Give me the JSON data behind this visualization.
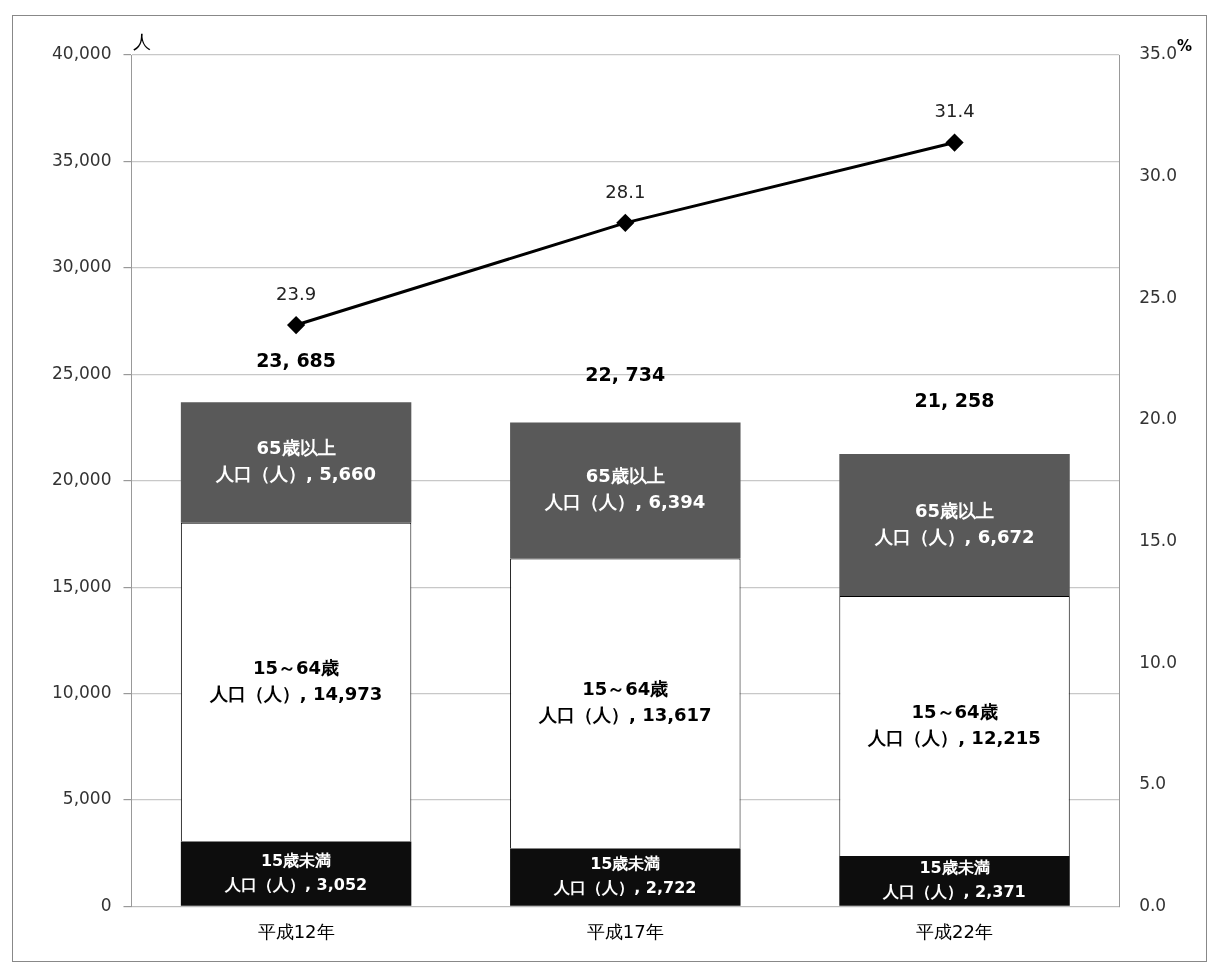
{
  "chart_data": {
    "type": "bar",
    "stacked": true,
    "categories": [
      "平成12年",
      "平成17年",
      "平成22年"
    ],
    "series": [
      {
        "name": "15歳未満人口（人）,",
        "color": "#0d0d0d",
        "values": [
          3052,
          2722,
          2371
        ],
        "value_labels": [
          "3,052",
          "2,722",
          "2,371"
        ]
      },
      {
        "name": "15～64歳人口（人）,",
        "color": "#ffffff",
        "values": [
          14973,
          13617,
          12215
        ],
        "value_labels": [
          "14,973",
          "13,617",
          "12,215"
        ]
      },
      {
        "name": "65歳以上人口（人）,",
        "color": "#595959",
        "values": [
          5660,
          6394,
          6672
        ],
        "value_labels": [
          "5,660",
          "6,394",
          "6,672"
        ]
      },
      {
        "type": "line",
        "axis": "y2",
        "color": "#000000",
        "marker": "diamond",
        "values": [
          23.9,
          28.1,
          31.4
        ],
        "value_labels": [
          "23.9",
          "28.1",
          "31.4"
        ]
      }
    ],
    "totals": [
      "23, 685",
      "22, 734",
      "21, 258"
    ],
    "ylabel": "人",
    "y2label": "%",
    "ylim": [
      0,
      40000
    ],
    "yticks": [
      0,
      {
        "value": 5000,
        "label": "5,000"
      },
      {
        "value": 10000,
        "label": "10,000"
      },
      {
        "value": 15000,
        "label": "15,000"
      },
      {
        "value": 20000,
        "label": "20,000"
      },
      {
        "value": 25000,
        "label": "25,000"
      },
      {
        "value": 30000,
        "label": "30,000"
      },
      {
        "value": 35000,
        "label": "35,000"
      },
      {
        "value": 40000,
        "label": "40,000"
      }
    ],
    "y2lim": [
      0,
      35
    ],
    "y2ticks": [
      {
        "value": 0,
        "label": "0.0"
      },
      {
        "value": 5,
        "label": "5.0"
      },
      {
        "value": 10,
        "label": "10.0"
      },
      {
        "value": 15,
        "label": "15.0"
      },
      {
        "value": 20,
        "label": "20.0"
      },
      {
        "value": 25,
        "label": "25.0"
      },
      {
        "value": 30,
        "label": "30.0"
      },
      {
        "value": 35,
        "label": "35.0"
      }
    ],
    "grid": "y",
    "legend": false
  }
}
